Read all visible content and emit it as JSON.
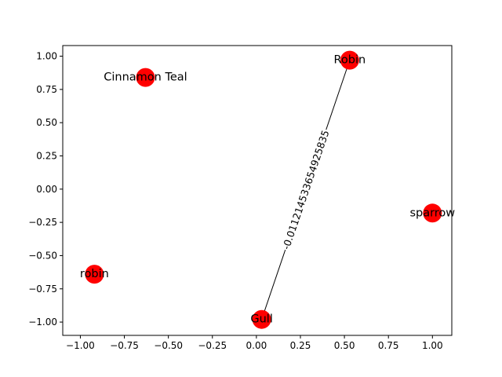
{
  "chart_data": {
    "type": "network",
    "xlim": [
      -1.1,
      1.11
    ],
    "ylim": [
      -1.1,
      1.08
    ],
    "xticks": [
      {
        "value": -1.0,
        "label": "−1.00"
      },
      {
        "value": -0.75,
        "label": "−0.75"
      },
      {
        "value": -0.5,
        "label": "−0.50"
      },
      {
        "value": -0.25,
        "label": "−0.25"
      },
      {
        "value": 0.0,
        "label": "0.00"
      },
      {
        "value": 0.25,
        "label": "0.25"
      },
      {
        "value": 0.5,
        "label": "0.50"
      },
      {
        "value": 0.75,
        "label": "0.75"
      },
      {
        "value": 1.0,
        "label": "1.00"
      }
    ],
    "yticks": [
      {
        "value": 1.0,
        "label": "1.00"
      },
      {
        "value": 0.75,
        "label": "0.75"
      },
      {
        "value": 0.5,
        "label": "0.50"
      },
      {
        "value": 0.25,
        "label": "0.25"
      },
      {
        "value": 0.0,
        "label": "0.00"
      },
      {
        "value": -0.25,
        "label": "−0.25"
      },
      {
        "value": -0.5,
        "label": "−0.50"
      },
      {
        "value": -0.75,
        "label": "−0.75"
      },
      {
        "value": -1.0,
        "label": "−1.00"
      }
    ],
    "nodes": [
      {
        "id": "robin_lower",
        "label": "robin",
        "x": -0.92,
        "y": -0.64
      },
      {
        "id": "cinnamon_teal",
        "label": "Cinnamon Teal",
        "x": -0.63,
        "y": 0.84
      },
      {
        "id": "robin_upper",
        "label": "Robin",
        "x": 0.53,
        "y": 0.97
      },
      {
        "id": "sparrow",
        "label": "sparrow",
        "x": 1.0,
        "y": -0.18
      },
      {
        "id": "gull",
        "label": "Gull",
        "x": 0.03,
        "y": -0.98
      }
    ],
    "edges": [
      {
        "source": "gull",
        "target": "robin_upper",
        "label": "-0.011214533654925835"
      }
    ],
    "node_color": "#ff0000",
    "edge_color": "#000000"
  }
}
